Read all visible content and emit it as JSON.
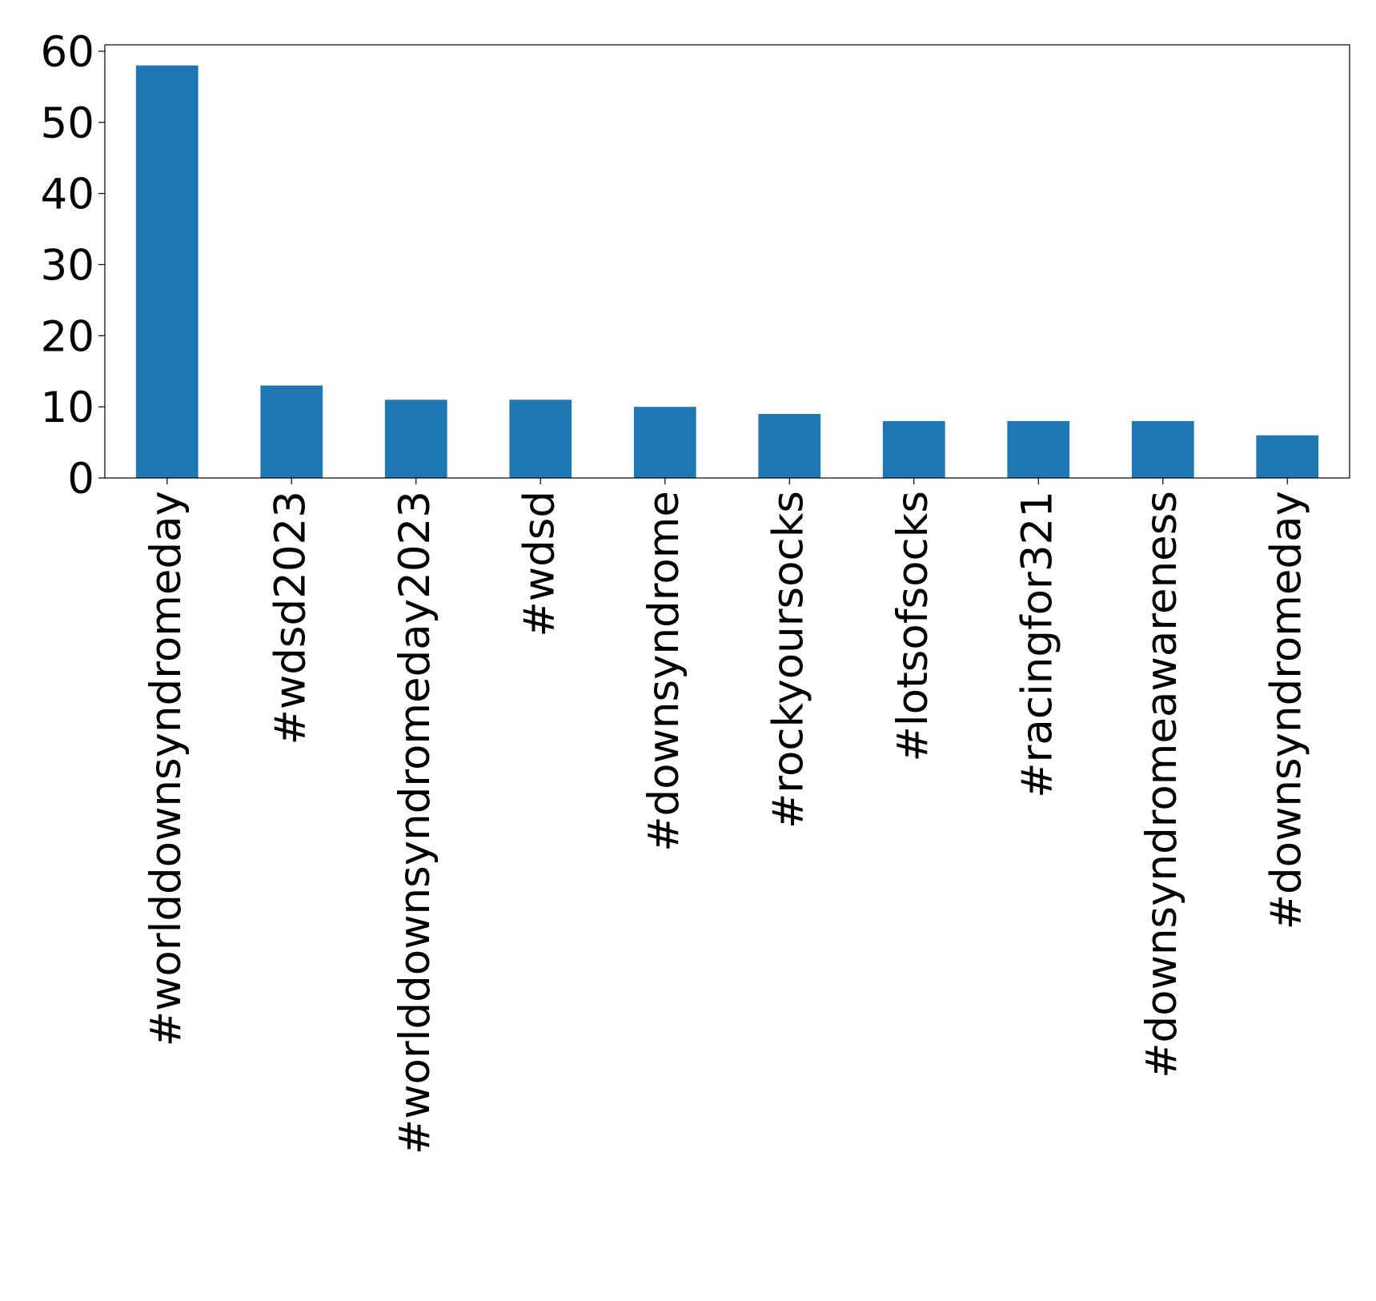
{
  "chart_data": {
    "type": "bar",
    "title": "",
    "xlabel": "",
    "ylabel": "",
    "categories": [
      "#worlddownsyndromeday",
      "#wdsd2023",
      "#worlddownsyndromeday2023",
      "#wdsd",
      "#downsyndrome",
      "#rockyoursocks",
      "#lotsofsocks",
      "#racingfor321",
      "#downsyndromeawareness",
      "#downsyndromeday"
    ],
    "values": [
      58,
      13,
      11,
      11,
      10,
      9,
      8,
      8,
      8,
      6
    ],
    "ylim": [
      0,
      60.9
    ],
    "yticks": [
      0,
      10,
      20,
      30,
      40,
      50,
      60
    ],
    "grid": false,
    "legend": "none",
    "bar_color": "#1f77b4"
  }
}
